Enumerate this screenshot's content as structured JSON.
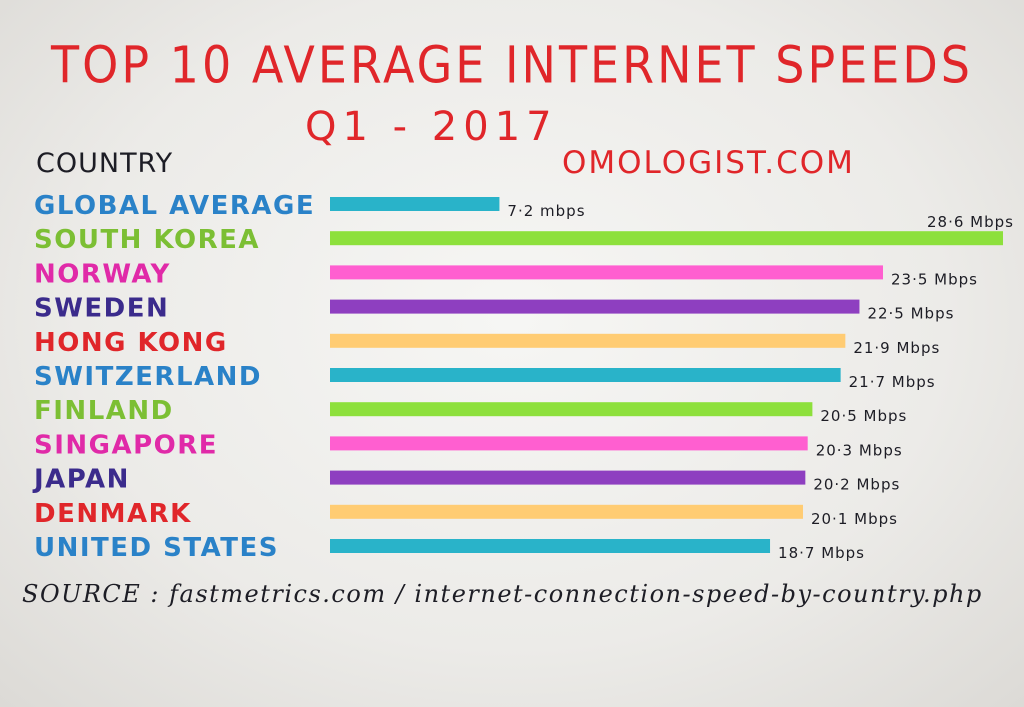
{
  "chart_data": {
    "type": "bar",
    "orientation": "horizontal",
    "title": "TOP 10 AVERAGE INTERNET SPEEDS",
    "subtitle": "Q1 - 2017",
    "column_header": "COUNTRY",
    "watermark": "OMOLOGIST.COM",
    "source": "SOURCE : fastmetrics.com / internet-connection-speed-by-country.php",
    "unit": "Mbps",
    "xlim": [
      0,
      28.6
    ],
    "grid": false,
    "legend": "none",
    "categories": [
      "GLOBAL AVERAGE",
      "SOUTH KOREA",
      "NORWAY",
      "SWEDEN",
      "HONG KONG",
      "SWITZERLAND",
      "FINLAND",
      "SINGAPORE",
      "JAPAN",
      "DENMARK",
      "UNITED STATES"
    ],
    "values": [
      7.2,
      28.6,
      23.5,
      22.5,
      21.9,
      21.7,
      20.5,
      20.3,
      20.2,
      20.1,
      18.7
    ],
    "value_labels": [
      "7·2 mbps",
      "28·6 Mbps",
      "23·5 Mbps",
      "22·5 Mbps",
      "21·9 Mbps",
      "21·7 Mbps",
      "20·5 Mbps",
      "20·3 Mbps",
      "20·2 Mbps",
      "20·1 Mbps",
      "18·7 Mbps"
    ],
    "colors": [
      "#29b3c9",
      "#8de03c",
      "#ff5fd0",
      "#8e3fc0",
      "#ffcc73",
      "#29b3c9",
      "#8de03c",
      "#ff5fd0",
      "#8e3fc0",
      "#ffcc73",
      "#29b3c9"
    ],
    "label_colors": [
      "#2a82c8",
      "#7cbf34",
      "#e02aa8",
      "#3b2b8c",
      "#e0262a",
      "#2a82c8",
      "#7cbf34",
      "#e02aa8",
      "#3b2b8c",
      "#e0262a",
      "#2a82c8"
    ]
  }
}
